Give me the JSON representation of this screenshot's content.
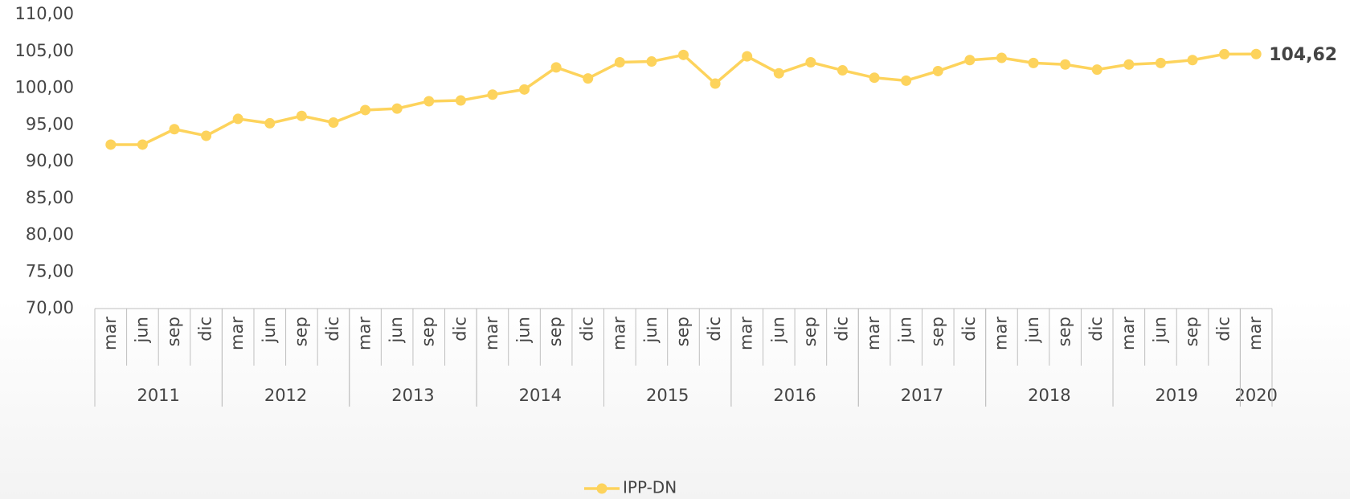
{
  "chart_data": {
    "type": "line",
    "category_groups": [
      {
        "label": "2011",
        "categories": [
          "mar",
          "jun",
          "sep",
          "dic"
        ]
      },
      {
        "label": "2012",
        "categories": [
          "mar",
          "jun",
          "sep",
          "dic"
        ]
      },
      {
        "label": "2013",
        "categories": [
          "mar",
          "jun",
          "sep",
          "dic"
        ]
      },
      {
        "label": "2014",
        "categories": [
          "mar",
          "jun",
          "sep",
          "dic"
        ]
      },
      {
        "label": "2015",
        "categories": [
          "mar",
          "jun",
          "sep",
          "dic"
        ]
      },
      {
        "label": "2016",
        "categories": [
          "mar",
          "jun",
          "sep",
          "dic"
        ]
      },
      {
        "label": "2017",
        "categories": [
          "mar",
          "jun",
          "sep",
          "dic"
        ]
      },
      {
        "label": "2018",
        "categories": [
          "mar",
          "jun",
          "sep",
          "dic"
        ]
      },
      {
        "label": "2019",
        "categories": [
          "mar",
          "jun",
          "sep",
          "dic"
        ]
      },
      {
        "label": "2020",
        "categories": [
          "mar"
        ]
      }
    ],
    "series": [
      {
        "name": "IPP-DN",
        "color": "#fdd35c",
        "values": [
          92.3,
          92.3,
          94.4,
          93.5,
          95.8,
          95.2,
          96.2,
          95.3,
          97.0,
          97.2,
          98.2,
          98.3,
          99.1,
          99.8,
          102.8,
          101.3,
          103.5,
          103.6,
          104.5,
          100.6,
          104.3,
          102.0,
          103.5,
          102.4,
          101.4,
          101.0,
          102.3,
          103.8,
          104.1,
          103.4,
          103.2,
          102.5,
          103.2,
          103.4,
          103.8,
          104.6,
          104.62
        ],
        "value_labels": [
          null,
          null,
          null,
          null,
          null,
          null,
          null,
          null,
          null,
          null,
          null,
          null,
          null,
          null,
          null,
          null,
          null,
          null,
          null,
          null,
          null,
          null,
          null,
          null,
          null,
          null,
          null,
          null,
          null,
          null,
          null,
          null,
          null,
          null,
          null,
          null,
          "104,62"
        ]
      }
    ],
    "ylim": [
      70,
      110
    ],
    "yticks": [
      {
        "value": 70,
        "label": "70,00"
      },
      {
        "value": 75,
        "label": "75,00"
      },
      {
        "value": 80,
        "label": "80,00"
      },
      {
        "value": 85,
        "label": "85,00"
      },
      {
        "value": 90,
        "label": "90,00"
      },
      {
        "value": 95,
        "label": "95,00"
      },
      {
        "value": 100,
        "label": "100,00"
      },
      {
        "value": 105,
        "label": "105,00"
      },
      {
        "value": 110,
        "label": "110,00"
      }
    ],
    "grid": false,
    "legend": "bottom"
  }
}
